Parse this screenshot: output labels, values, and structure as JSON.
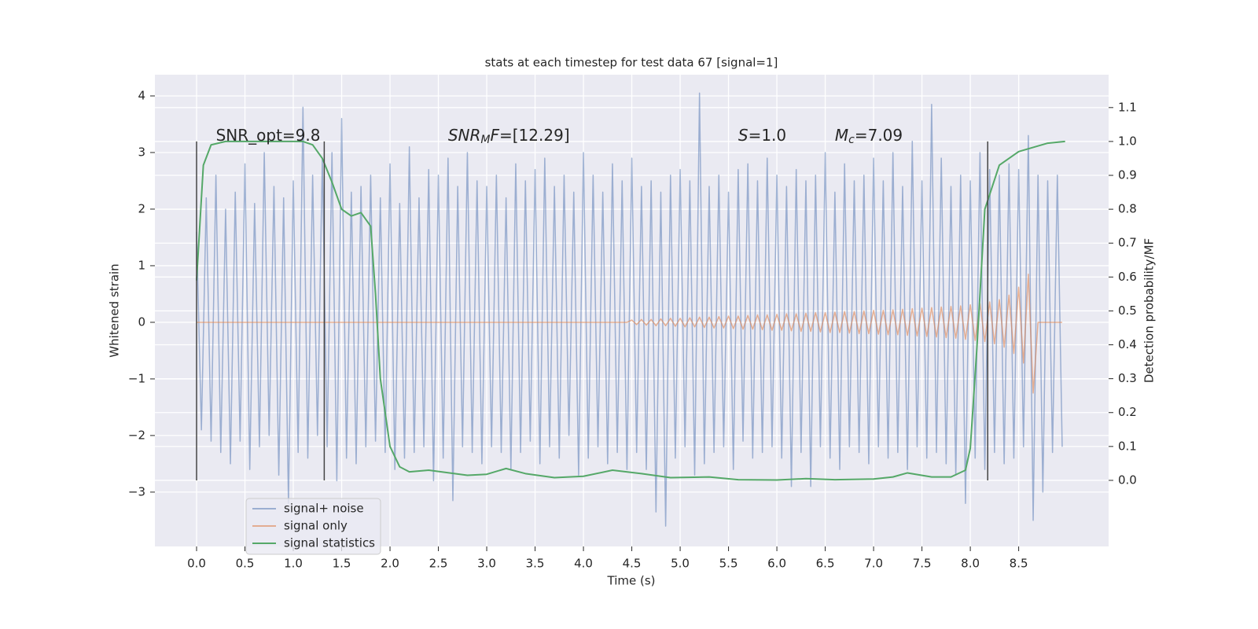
{
  "chart_data": {
    "type": "line",
    "title": "stats at each timestep for test data 67 [signal=1]",
    "xlabel": "Time (s)",
    "ylabel": "Whitened strain",
    "y2label": "Detection probability/MF",
    "xlim": [
      -0.431,
      9.43
    ],
    "ylim": [
      -3.96,
      4.375
    ],
    "y2lim": [
      -0.195,
      1.197
    ],
    "xticks": [
      {
        "value": 0,
        "label": "0.0"
      },
      {
        "value": 0.5,
        "label": "0.5"
      },
      {
        "value": 1,
        "label": "1.0"
      },
      {
        "value": 1.5,
        "label": "1.5"
      },
      {
        "value": 2,
        "label": "2.0"
      },
      {
        "value": 2.5,
        "label": "2.5"
      },
      {
        "value": 3,
        "label": "3.0"
      },
      {
        "value": 3.5,
        "label": "3.5"
      },
      {
        "value": 4,
        "label": "4.0"
      },
      {
        "value": 4.5,
        "label": "4.5"
      },
      {
        "value": 5,
        "label": "5.0"
      },
      {
        "value": 5.5,
        "label": "5.5"
      },
      {
        "value": 6,
        "label": "6.0"
      },
      {
        "value": 6.5,
        "label": "6.5"
      },
      {
        "value": 7,
        "label": "7.0"
      },
      {
        "value": 7.5,
        "label": "7.5"
      },
      {
        "value": 8,
        "label": "8.0"
      },
      {
        "value": 8.5,
        "label": "8.5"
      }
    ],
    "yticks": [
      {
        "value": -3,
        "label": "−3"
      },
      {
        "value": -2,
        "label": "−2"
      },
      {
        "value": -1,
        "label": "−1"
      },
      0,
      1,
      2,
      3,
      4
    ],
    "y2ticks": [
      {
        "value": 0,
        "label": "0.0"
      },
      {
        "value": 0.1,
        "label": "0.1"
      },
      {
        "value": 0.2,
        "label": "0.2"
      },
      {
        "value": 0.3,
        "label": "0.3"
      },
      {
        "value": 0.4,
        "label": "0.4"
      },
      {
        "value": 0.5,
        "label": "0.5"
      },
      {
        "value": 0.6,
        "label": "0.6"
      },
      {
        "value": 0.7,
        "label": "0.7"
      },
      {
        "value": 0.8,
        "label": "0.8"
      },
      {
        "value": 0.9,
        "label": "0.9"
      },
      {
        "value": 1,
        "label": "1.0"
      },
      {
        "value": 1.1,
        "label": "1.1"
      }
    ],
    "grid": true,
    "legend": "lower left",
    "x": [
      0,
      0.05,
      0.1,
      0.15,
      0.2,
      0.25,
      0.3,
      0.35,
      0.4,
      0.45,
      0.5,
      0.55,
      0.6,
      0.65,
      0.7,
      0.75,
      0.8,
      0.85,
      0.9,
      0.95,
      1,
      1.05,
      1.1,
      1.15,
      1.2,
      1.25,
      1.3,
      1.35,
      1.4,
      1.45,
      1.5,
      1.55,
      1.6,
      1.65,
      1.7,
      1.75,
      1.8,
      1.85,
      1.9,
      1.95,
      2,
      2.05,
      2.1,
      2.15,
      2.2,
      2.25,
      2.3,
      2.35,
      2.4,
      2.45,
      2.5,
      2.55,
      2.6,
      2.65,
      2.7,
      2.75,
      2.8,
      2.85,
      2.9,
      2.95,
      3,
      3.05,
      3.1,
      3.15,
      3.2,
      3.25,
      3.3,
      3.35,
      3.4,
      3.45,
      3.5,
      3.55,
      3.6,
      3.65,
      3.7,
      3.75,
      3.8,
      3.85,
      3.9,
      3.95,
      4,
      4.05,
      4.1,
      4.15,
      4.2,
      4.25,
      4.3,
      4.35,
      4.4,
      4.45,
      4.5,
      4.55,
      4.6,
      4.65,
      4.7,
      4.75,
      4.8,
      4.85,
      4.9,
      4.95,
      5,
      5.05,
      5.1,
      5.15,
      5.2,
      5.25,
      5.3,
      5.35,
      5.4,
      5.45,
      5.5,
      5.55,
      5.6,
      5.65,
      5.7,
      5.75,
      5.8,
      5.85,
      5.9,
      5.95,
      6,
      6.05,
      6.1,
      6.15,
      6.2,
      6.25,
      6.3,
      6.35,
      6.4,
      6.45,
      6.5,
      6.55,
      6.6,
      6.65,
      6.7,
      6.75,
      6.8,
      6.85,
      6.9,
      6.95,
      7,
      7.05,
      7.1,
      7.15,
      7.2,
      7.25,
      7.3,
      7.35,
      7.4,
      7.45,
      7.5,
      7.55,
      7.6,
      7.65,
      7.7,
      7.75,
      7.8,
      7.85,
      7.9,
      7.95,
      8,
      8.05,
      8.1,
      8.15,
      8.2,
      8.25,
      8.3,
      8.35,
      8.4,
      8.45,
      8.5,
      8.55,
      8.6,
      8.65,
      8.7,
      8.75,
      8.8,
      8.85,
      8.9,
      8.95
    ],
    "series": [
      {
        "name": "signal+ noise",
        "color": "#4c72b0",
        "opacity": 0.5,
        "values": [
          1.6,
          -1.9,
          2.2,
          -2.1,
          2.6,
          -2.3,
          2.0,
          -2.5,
          2.3,
          -2.1,
          2.8,
          -2.6,
          2.1,
          -2.2,
          3.0,
          -2.0,
          2.4,
          -2.7,
          2.2,
          -3.2,
          2.5,
          -2.3,
          3.8,
          -2.4,
          2.6,
          -2.0,
          2.9,
          -2.2,
          3.0,
          -2.8,
          3.6,
          -2.4,
          2.3,
          -2.5,
          2.4,
          -2.2,
          2.6,
          -2.1,
          2.2,
          -2.3,
          2.8,
          -2.6,
          2.1,
          -2.4,
          3.1,
          -2.3,
          2.2,
          -2.2,
          2.7,
          -2.8,
          2.6,
          -2.4,
          2.9,
          -3.15,
          2.4,
          -2.2,
          3.0,
          -2.3,
          2.5,
          -2.5,
          2.4,
          -2.2,
          2.6,
          -2.3,
          2.2,
          -2.6,
          2.8,
          -2.3,
          2.5,
          -2.1,
          2.7,
          -2.5,
          2.9,
          -2.2,
          2.4,
          -2.4,
          2.6,
          -2.0,
          2.3,
          -2.7,
          3.0,
          -2.4,
          2.6,
          -2.2,
          2.3,
          -2.5,
          2.8,
          -2.3,
          2.5,
          -2.6,
          2.9,
          -2.3,
          2.4,
          -2.6,
          2.5,
          -3.35,
          2.3,
          -3.6,
          2.6,
          -2.4,
          2.7,
          -2.2,
          2.5,
          -2.7,
          4.05,
          -2.5,
          2.4,
          -2.3,
          2.6,
          -2.2,
          2.3,
          -2.6,
          2.7,
          -2.1,
          2.8,
          -2.4,
          2.5,
          -2.3,
          2.9,
          -2.2,
          2.6,
          -2.4,
          2.4,
          -2.9,
          2.7,
          -2.3,
          2.5,
          -2.9,
          2.6,
          -2.2,
          3.0,
          -2.4,
          2.3,
          -2.6,
          2.8,
          -2.2,
          2.5,
          -2.3,
          2.6,
          -2.5,
          2.9,
          -2.2,
          2.5,
          -2.4,
          3.0,
          -2.3,
          2.4,
          -2.6,
          3.2,
          -2.2,
          2.5,
          -2.4,
          3.85,
          -2.3,
          2.9,
          -2.5,
          2.4,
          -2.7,
          2.6,
          -3.2,
          2.5,
          -2.4,
          3.0,
          -2.6,
          2.7,
          -2.3,
          2.6,
          -2.5,
          2.8,
          -2.4,
          2.7,
          -2.2,
          3.3,
          -3.5,
          2.6,
          -3.0,
          2.5,
          -2.3,
          2.6,
          -2.2
        ]
      },
      {
        "name": "signal only",
        "color": "#dd8452",
        "opacity": 0.6,
        "values": [
          0,
          0,
          0,
          0,
          0,
          0,
          0,
          0,
          0,
          0,
          0,
          0,
          0,
          0,
          0,
          0,
          0,
          0,
          0,
          0,
          0,
          0,
          0,
          0,
          0,
          0,
          0,
          0,
          0,
          0,
          0,
          0,
          0,
          0,
          0,
          0,
          0,
          0,
          0,
          0,
          0,
          0,
          0,
          0,
          0,
          0,
          0,
          0,
          0,
          0,
          0,
          0,
          0,
          0,
          0,
          0,
          0,
          0,
          0,
          0,
          0,
          0,
          0,
          0,
          0,
          0,
          0,
          0,
          0,
          0,
          0,
          0,
          0,
          0,
          0,
          0,
          0,
          0,
          0,
          0,
          0,
          0,
          0,
          0,
          0,
          0,
          0,
          0,
          0,
          0,
          0.04,
          -0.04,
          0.05,
          -0.05,
          0.05,
          -0.06,
          0.06,
          -0.06,
          0.07,
          -0.07,
          0.07,
          -0.08,
          0.08,
          -0.08,
          0.09,
          -0.09,
          0.09,
          -0.1,
          0.1,
          -0.1,
          0.11,
          -0.11,
          0.11,
          -0.12,
          0.12,
          -0.12,
          0.13,
          -0.13,
          0.13,
          -0.14,
          0.14,
          -0.14,
          0.15,
          -0.15,
          0.15,
          -0.16,
          0.16,
          -0.16,
          0.17,
          -0.17,
          0.17,
          -0.18,
          0.18,
          -0.18,
          0.19,
          -0.19,
          0.19,
          -0.2,
          0.2,
          -0.2,
          0.21,
          -0.21,
          0.21,
          -0.22,
          0.22,
          -0.22,
          0.23,
          -0.23,
          0.24,
          -0.24,
          0.25,
          -0.25,
          0.26,
          -0.26,
          0.27,
          -0.27,
          0.28,
          -0.28,
          0.29,
          -0.3,
          0.31,
          -0.32,
          0.33,
          -0.34,
          0.36,
          -0.38,
          0.4,
          -0.44,
          0.48,
          -0.55,
          0.62,
          -0.72,
          0.85,
          -1.25,
          0,
          0,
          0,
          0,
          0,
          0
        ]
      },
      {
        "name": "signal statistics",
        "color": "#55a868",
        "axis": "y2",
        "x": [
          0,
          0.07,
          0.15,
          0.3,
          0.6,
          0.9,
          1.1,
          1.2,
          1.3,
          1.4,
          1.5,
          1.6,
          1.7,
          1.8,
          1.85,
          1.9,
          2.0,
          2.1,
          2.2,
          2.4,
          2.8,
          3.0,
          3.2,
          3.4,
          3.7,
          4.0,
          4.3,
          4.6,
          4.9,
          5.3,
          5.6,
          6.0,
          6.3,
          6.6,
          7.0,
          7.2,
          7.35,
          7.6,
          7.8,
          7.95,
          8.0,
          8.07,
          8.15,
          8.3,
          8.5,
          8.8,
          8.98
        ],
        "values": [
          0.59,
          0.93,
          0.99,
          1.0,
          1.0,
          1.0,
          1.0,
          0.99,
          0.95,
          0.88,
          0.8,
          0.78,
          0.79,
          0.75,
          0.55,
          0.3,
          0.1,
          0.04,
          0.025,
          0.03,
          0.015,
          0.018,
          0.035,
          0.02,
          0.008,
          0.012,
          0.03,
          0.02,
          0.008,
          0.01,
          0.002,
          0.001,
          0.005,
          0.002,
          0.004,
          0.01,
          0.022,
          0.01,
          0.01,
          0.03,
          0.095,
          0.4,
          0.8,
          0.93,
          0.97,
          0.995,
          1.0
        ]
      }
    ],
    "vlines": {
      "x": [
        0,
        1.32,
        8.18
      ],
      "y2": [
        0,
        1
      ],
      "color": "#444444"
    },
    "annotations": [
      {
        "x": 0.2,
        "y": 3.29,
        "parts": [
          {
            "text": "SNR_opt=9.8"
          }
        ]
      },
      {
        "x": 2.6,
        "y": 3.29,
        "parts": [
          {
            "text": "SNR",
            "style": "italic"
          },
          {
            "text": "M",
            "style": "italic-sub"
          },
          {
            "text": "F",
            "style": "italic"
          },
          {
            "text": "=[12.29]"
          }
        ]
      },
      {
        "x": 5.6,
        "y": 3.29,
        "parts": [
          {
            "text": "S",
            "style": "italic"
          },
          {
            "text": "=1.0"
          }
        ]
      },
      {
        "x": 6.6,
        "y": 3.29,
        "parts": [
          {
            "text": "M",
            "style": "italic"
          },
          {
            "text": "c",
            "style": "italic-sub"
          },
          {
            "text": "=7.09"
          }
        ]
      }
    ]
  }
}
